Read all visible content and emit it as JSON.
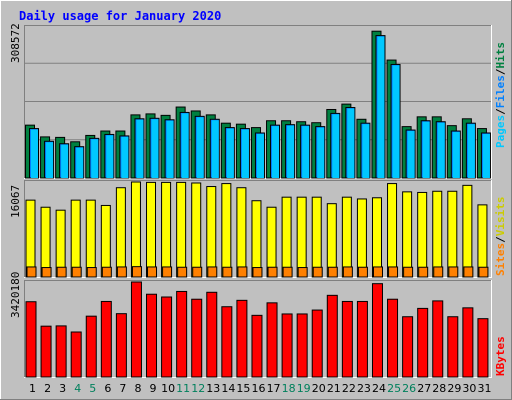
{
  "chart_data": [
    {
      "type": "bar",
      "title": "Daily usage for January 2020",
      "ylabel_max": "308572",
      "ylim": [
        0,
        308572
      ],
      "categories": [
        "1",
        "2",
        "3",
        "4",
        "5",
        "6",
        "7",
        "8",
        "9",
        "10",
        "11",
        "12",
        "13",
        "14",
        "15",
        "16",
        "17",
        "18",
        "19",
        "20",
        "21",
        "22",
        "23",
        "24",
        "25",
        "26",
        "27",
        "28",
        "29",
        "30",
        "31"
      ],
      "weekend_days": [
        "4",
        "5",
        "11",
        "12",
        "18",
        "19",
        "25",
        "26"
      ],
      "legend": [
        "Pages",
        "/",
        "Files",
        "/",
        "Hits"
      ],
      "series": [
        {
          "name": "Hits",
          "color": "#008040",
          "values": [
            108000,
            84000,
            83000,
            74000,
            87000,
            96000,
            96000,
            129000,
            131000,
            128000,
            145000,
            137000,
            129000,
            112000,
            110000,
            103000,
            117000,
            117000,
            115000,
            113000,
            140000,
            151000,
            120000,
            300000,
            241000,
            105000,
            125000,
            125000,
            107000,
            121000,
            101000
          ]
        },
        {
          "name": "Files",
          "color": "#0080ff",
          "values": [
            101000,
            75000,
            70000,
            64000,
            81000,
            89000,
            86000,
            121000,
            122000,
            119000,
            134000,
            126000,
            120000,
            103000,
            101000,
            92000,
            108000,
            109000,
            108000,
            105000,
            132000,
            144000,
            112000,
            291000,
            232000,
            98000,
            117000,
            115000,
            96000,
            112000,
            92000
          ]
        },
        {
          "name": "Pages",
          "color": "#00e0ff"
        }
      ]
    },
    {
      "type": "bar",
      "ylabel_max": "16067",
      "ylim": [
        0,
        16067
      ],
      "legend": [
        "Sites",
        "/",
        "Visits"
      ],
      "series": [
        {
          "name": "Visits",
          "color": "#ffff00",
          "values": [
            13000,
            11800,
            11300,
            13000,
            13000,
            12100,
            15100,
            16067,
            16000,
            16000,
            16000,
            15900,
            15300,
            15800,
            15100,
            12900,
            11800,
            13500,
            13500,
            13500,
            12400,
            13500,
            13200,
            13400,
            15800,
            14400,
            14300,
            14500,
            14500,
            15500,
            12200
          ]
        },
        {
          "name": "Sites",
          "color": "#ff8000",
          "values": [
            1700,
            1600,
            1650,
            1650,
            1600,
            1650,
            1700,
            1750,
            1700,
            1700,
            1650,
            1650,
            1700,
            1650,
            1700,
            1600,
            1650,
            1650,
            1600,
            1650,
            1650,
            1700,
            1650,
            1700,
            1700,
            1650,
            1650,
            1700,
            1700,
            1700,
            1650
          ]
        }
      ]
    },
    {
      "type": "bar",
      "ylabel_max": "3420180",
      "ylim": [
        0,
        3420180
      ],
      "legend": [
        "KBytes"
      ],
      "series": [
        {
          "name": "KBytes",
          "color": "#ff0000",
          "values": [
            2710000,
            1830000,
            1840000,
            1620000,
            2190000,
            2720000,
            2280000,
            3420180,
            2980000,
            2880000,
            3080000,
            2800000,
            3050000,
            2530000,
            2760000,
            2220000,
            2670000,
            2270000,
            2270000,
            2410000,
            2940000,
            2720000,
            2720000,
            3360000,
            2800000,
            2170000,
            2470000,
            2740000,
            2170000,
            2490000,
            2100000
          ]
        }
      ]
    }
  ],
  "colors": {
    "background": "#c0c0c0",
    "plot_bg": "#c0c0c0",
    "title": "#0000ff",
    "weekday_label": "#000000",
    "weekend_label": "#00805c"
  }
}
